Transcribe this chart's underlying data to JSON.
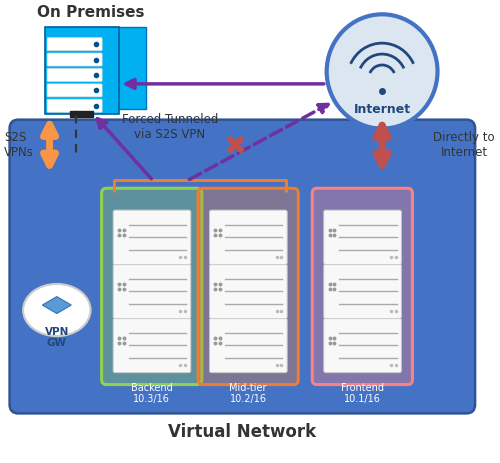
{
  "bg_color": "#ffffff",
  "title": "Virtual Network",
  "on_premises_label": "On Premises",
  "internet_label": "Internet",
  "vpn_gw_label": "VPN\nGW",
  "s2s_label": "S2S\nVPNs",
  "directly_label": "Directly to\nInternet",
  "forced_label": "Forced Tunneled\nvia S2S VPN",
  "backend_label": "Backend\n10.3/16",
  "midtier_label": "Mid-tier\n10.2/16",
  "frontend_label": "Frontend\n10.1/16",
  "vnet_box_color": "#4472c4",
  "backend_box_color": "#92d050",
  "midtier_box_color": "#ed7d31",
  "frontend_box_color": "#ff8080",
  "internet_circle_fill": "#dce6f1",
  "internet_circle_edge": "#4472c4",
  "arrow_orange": "#f79646",
  "arrow_red": "#c0504d",
  "arrow_purple": "#7030a0",
  "cross_color": "#c0504d",
  "subnet_bracket_color": "#ed7d31"
}
